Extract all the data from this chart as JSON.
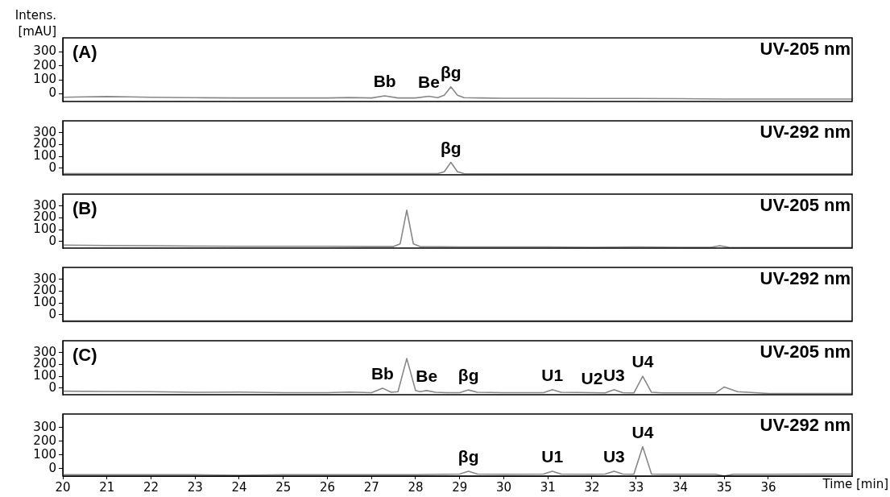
{
  "chart_data": [
    {
      "type": "line",
      "title": "(A)",
      "subtitle": "UV-205 nm",
      "ylabel": "Intens. [mAU]",
      "xlim": [
        20,
        37.9
      ],
      "xticks": [
        20,
        21,
        22,
        23,
        24,
        25,
        26,
        27,
        28,
        29,
        30,
        31,
        32,
        33,
        34,
        35,
        36
      ],
      "ylim": [
        -55,
        400
      ],
      "yticks": [
        0,
        100,
        200,
        300
      ],
      "tick_labels": "y",
      "marker": "none",
      "series": [
        {
          "color": "#888888",
          "x": [
            20,
            20.5,
            21,
            21.5,
            22,
            23,
            24,
            25,
            26,
            26.5,
            27,
            27.3,
            27.6,
            28,
            28.3,
            28.5,
            28.65,
            28.8,
            28.95,
            29.1,
            29.5,
            30,
            31,
            32,
            33,
            34,
            35,
            36,
            37,
            37.9
          ],
          "values": [
            -25,
            -22,
            -20,
            -22,
            -25,
            -28,
            -30,
            -30,
            -30,
            -27,
            -30,
            -15,
            -30,
            -30,
            -18,
            -28,
            -10,
            50,
            -10,
            -28,
            -30,
            -32,
            -32,
            -33,
            -33,
            -35,
            -38,
            -38,
            -38,
            -38
          ]
        }
      ],
      "annotations": [
        {
          "text": "Bb",
          "x": 27.3,
          "y": -15
        },
        {
          "text": "Be",
          "x": 28.3,
          "y": -18
        },
        {
          "text": "βg",
          "x": 28.8,
          "y": 50
        }
      ]
    },
    {
      "type": "line",
      "subtitle": "UV-292 nm",
      "xlim": [
        20,
        37.9
      ],
      "xticks": [
        20,
        21,
        22,
        23,
        24,
        25,
        26,
        27,
        28,
        29,
        30,
        31,
        32,
        33,
        34,
        35,
        36
      ],
      "ylim": [
        -55,
        400
      ],
      "yticks": [
        0,
        100,
        200,
        300
      ],
      "tick_labels": "y",
      "marker": "none",
      "series": [
        {
          "color": "#888888",
          "x": [
            20,
            24,
            27,
            28,
            28.5,
            28.65,
            28.8,
            28.95,
            29.1,
            30,
            34,
            37.9
          ],
          "values": [
            -45,
            -45,
            -45,
            -45,
            -45,
            -30,
            50,
            -30,
            -45,
            -47,
            -47,
            -47
          ]
        }
      ],
      "annotations": [
        {
          "text": "βg",
          "x": 28.8,
          "y": 50
        }
      ]
    },
    {
      "type": "line",
      "title": "(B)",
      "subtitle": "UV-205 nm",
      "xlim": [
        20,
        37.9
      ],
      "xticks": [
        20,
        21,
        22,
        23,
        24,
        25,
        26,
        27,
        28,
        29,
        30,
        31,
        32,
        33,
        34,
        35,
        36
      ],
      "ylim": [
        -55,
        400
      ],
      "yticks": [
        0,
        100,
        200,
        300
      ],
      "tick_labels": "y",
      "marker": "none",
      "series": [
        {
          "color": "#888888",
          "x": [
            20,
            21,
            22,
            23,
            24,
            25,
            26,
            27,
            27.5,
            27.65,
            27.8,
            27.95,
            28.1,
            29,
            30,
            31,
            32,
            33,
            34,
            34.7,
            34.9,
            35.1,
            35.5,
            36,
            37,
            37.9
          ],
          "values": [
            -30,
            -33,
            -35,
            -38,
            -40,
            -40,
            -40,
            -42,
            -42,
            -20,
            265,
            -20,
            -42,
            -45,
            -45,
            -45,
            -48,
            -45,
            -48,
            -48,
            -35,
            -48,
            -50,
            -50,
            -50,
            -50
          ]
        }
      ]
    },
    {
      "type": "line",
      "subtitle": "UV-292 nm",
      "xlim": [
        20,
        37.9
      ],
      "xticks": [
        20,
        21,
        22,
        23,
        24,
        25,
        26,
        27,
        28,
        29,
        30,
        31,
        32,
        33,
        34,
        35,
        36
      ],
      "ylim": [
        -55,
        400
      ],
      "yticks": [
        0,
        100,
        200,
        300
      ],
      "tick_labels": "y",
      "marker": "none",
      "series": [
        {
          "color": "#888888",
          "x": [
            20,
            25,
            30,
            35,
            37.9
          ],
          "values": [
            -50,
            -50,
            -50,
            -50,
            -50
          ]
        }
      ]
    },
    {
      "type": "line",
      "title": "(C)",
      "subtitle": "UV-205 nm",
      "xlim": [
        20,
        37.9
      ],
      "xticks": [
        20,
        21,
        22,
        23,
        24,
        25,
        26,
        27,
        28,
        29,
        30,
        31,
        32,
        33,
        34,
        35,
        36
      ],
      "ylim": [
        -55,
        400
      ],
      "yticks": [
        0,
        100,
        200,
        300
      ],
      "tick_labels": "y",
      "marker": "none",
      "series": [
        {
          "color": "#888888",
          "x": [
            20,
            21,
            22,
            23,
            24,
            25,
            26,
            26.5,
            27,
            27.25,
            27.45,
            27.6,
            27.8,
            28.0,
            28.1,
            28.25,
            28.45,
            28.7,
            29,
            29.2,
            29.4,
            30,
            30.9,
            31.1,
            31.3,
            32,
            32.3,
            32.5,
            32.7,
            32.95,
            33.15,
            33.35,
            33.6,
            34,
            34.8,
            35.0,
            35.3,
            36,
            37,
            37.9
          ],
          "values": [
            -25,
            -28,
            -30,
            -35,
            -33,
            -38,
            -38,
            -33,
            -38,
            0,
            -35,
            -30,
            250,
            -20,
            -30,
            -20,
            -35,
            -38,
            -38,
            -15,
            -35,
            -38,
            -38,
            -12,
            -35,
            -38,
            -40,
            -12,
            -38,
            -40,
            100,
            -35,
            -40,
            -40,
            -40,
            10,
            -30,
            -45,
            -45,
            -45
          ]
        }
      ],
      "annotations": [
        {
          "text": "Bb",
          "x": 27.25,
          "y": 0
        },
        {
          "text": "Be",
          "x": 28.25,
          "y": -20
        },
        {
          "text": "βg",
          "x": 29.2,
          "y": -15
        },
        {
          "text": "U1",
          "x": 31.1,
          "y": -12
        },
        {
          "text": "U2",
          "x": 32.0,
          "y": -38
        },
        {
          "text": "U3",
          "x": 32.5,
          "y": -12
        },
        {
          "text": "U4",
          "x": 33.15,
          "y": 100
        }
      ]
    },
    {
      "type": "line",
      "subtitle": "UV-292 nm",
      "xlabel": "Time [min]",
      "xlim": [
        20,
        37.9
      ],
      "xticks": [
        20,
        21,
        22,
        23,
        24,
        25,
        26,
        27,
        28,
        29,
        30,
        31,
        32,
        33,
        34,
        35,
        36
      ],
      "ylim": [
        -55,
        400
      ],
      "yticks": [
        0,
        100,
        200,
        300
      ],
      "marker": "none",
      "series": [
        {
          "color": "#888888",
          "x": [
            20,
            23,
            24,
            25,
            27,
            28,
            29,
            29.2,
            29.4,
            30,
            30.9,
            31.1,
            31.3,
            32,
            32.3,
            32.5,
            32.7,
            32.95,
            33.15,
            33.35,
            33.6,
            34,
            34.8,
            35.0,
            35.2,
            36,
            37.9
          ],
          "values": [
            -45,
            -45,
            -50,
            -45,
            -45,
            -45,
            -40,
            -20,
            -40,
            -42,
            -40,
            -20,
            -40,
            -42,
            -40,
            -20,
            -40,
            -42,
            160,
            -40,
            -42,
            -42,
            -42,
            -55,
            -42,
            -42,
            -40
          ]
        }
      ],
      "annotations": [
        {
          "text": "βg",
          "x": 29.2,
          "y": -20
        },
        {
          "text": "U1",
          "x": 31.1,
          "y": -20
        },
        {
          "text": "U3",
          "x": 32.5,
          "y": -20
        },
        {
          "text": "U4",
          "x": 33.15,
          "y": 160
        }
      ]
    }
  ]
}
